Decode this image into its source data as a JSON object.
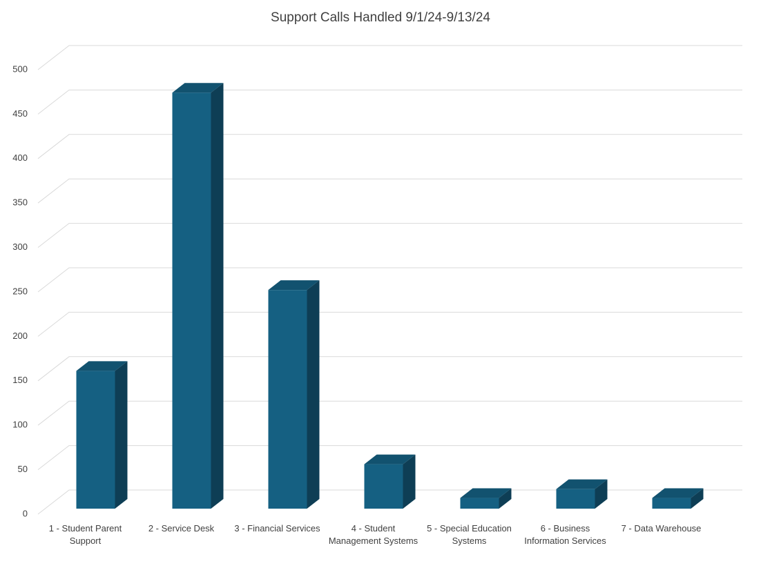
{
  "chart_data": {
    "type": "bar3d",
    "title": "Support Calls Handled 9/1/24-9/13/24",
    "categories": [
      "1 - Student Parent Support",
      "2 - Service Desk",
      "3 - Financial Services",
      "4 - Student Management Systems",
      "5 - Special Education Systems",
      "6 - Business Information Services",
      "7 - Data Warehouse"
    ],
    "values": [
      155,
      468,
      246,
      50,
      12,
      22,
      12
    ],
    "color": "#156082",
    "ylim": [
      0,
      500
    ],
    "yticks": [
      0,
      50,
      100,
      150,
      200,
      250,
      300,
      350,
      400,
      450,
      500
    ],
    "grid": true
  }
}
